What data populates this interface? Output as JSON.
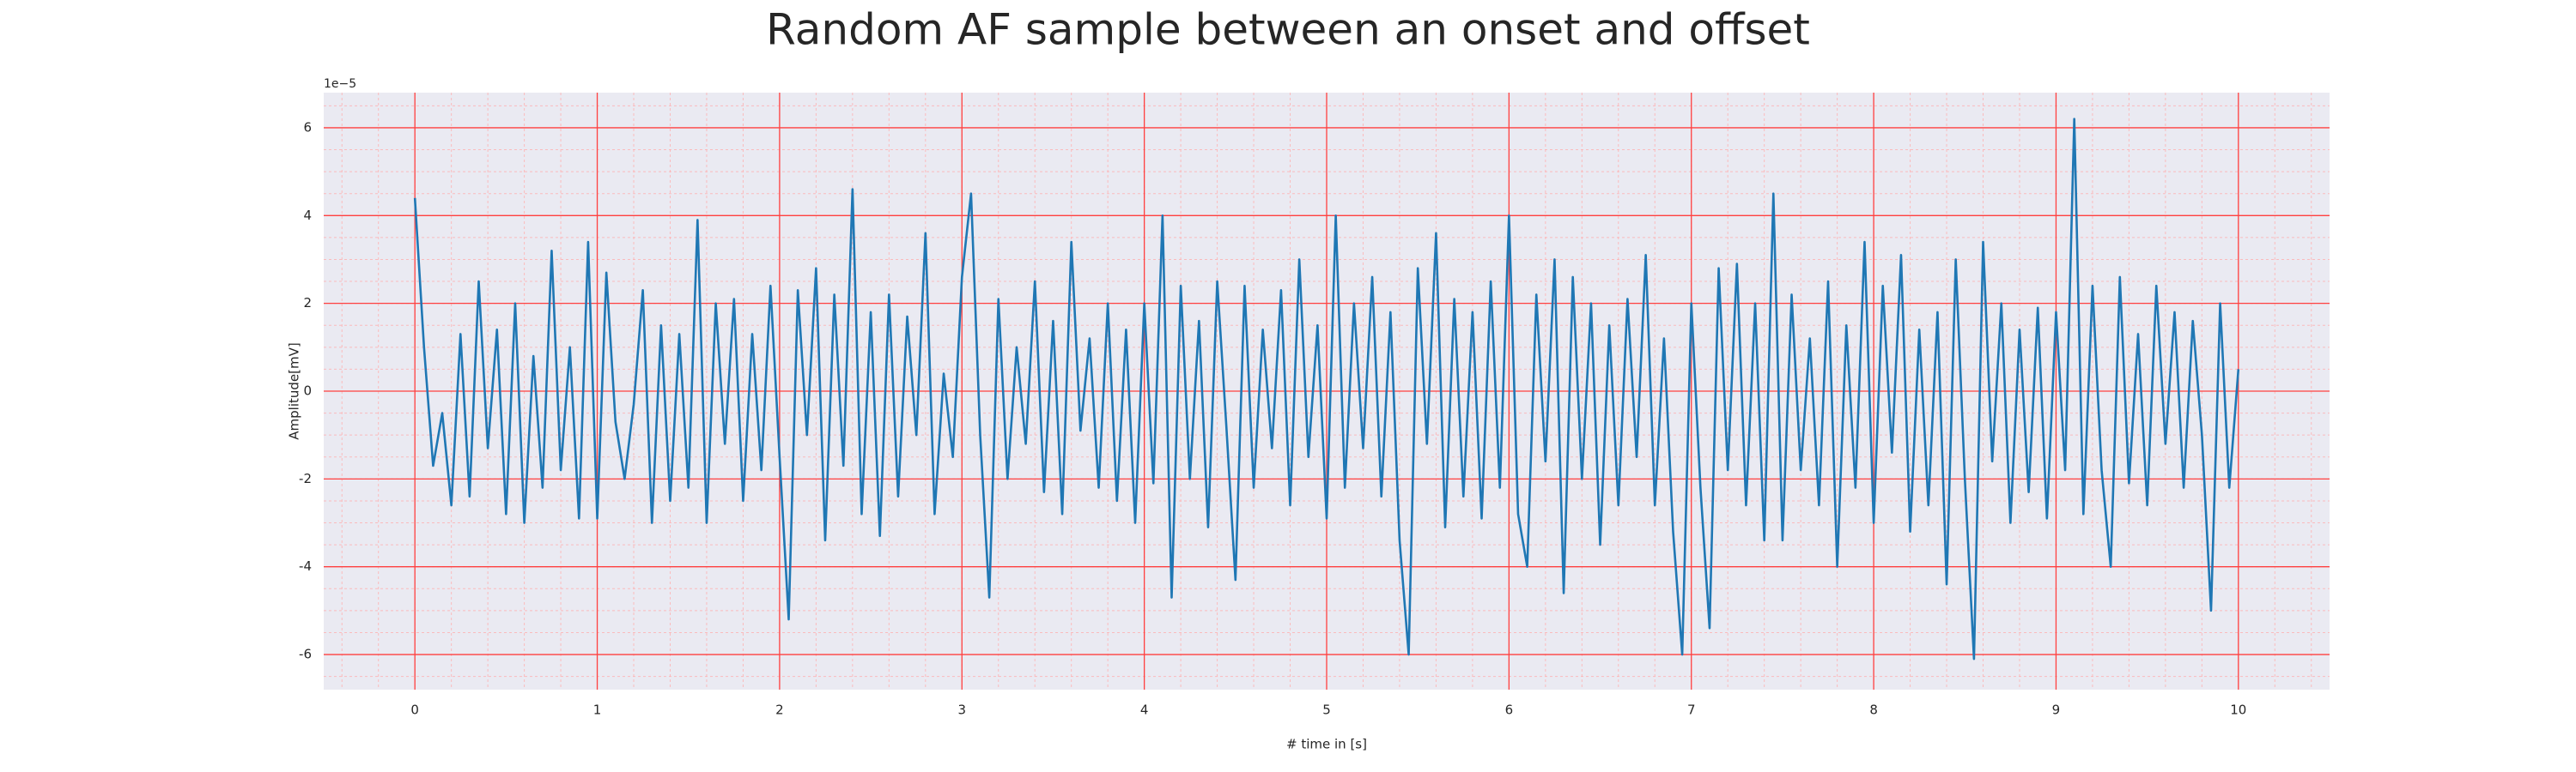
{
  "chart_data": {
    "type": "line",
    "title": "Random AF sample between an onset and offset",
    "xlabel": "# time in [s]",
    "ylabel": "Amplitude[mV]",
    "y_offset_label": "1e−5",
    "color": "#1f77b4",
    "grid": true,
    "minor_grid": true,
    "xlim": [
      -0.5,
      10.5
    ],
    "ylim": [
      -6.8,
      6.8
    ],
    "xticks": [
      0,
      1,
      2,
      3,
      4,
      5,
      6,
      7,
      8,
      9,
      10
    ],
    "yticks": [
      -6,
      -4,
      -2,
      0,
      2,
      4,
      6
    ],
    "x": [
      0,
      0.05,
      0.1,
      0.15,
      0.2,
      0.25,
      0.3,
      0.35,
      0.4,
      0.45,
      0.5,
      0.55,
      0.6,
      0.65,
      0.7,
      0.75,
      0.8,
      0.85,
      0.9,
      0.95,
      1,
      1.05,
      1.1,
      1.15,
      1.2,
      1.25,
      1.3,
      1.35,
      1.4,
      1.45,
      1.5,
      1.55,
      1.6,
      1.65,
      1.7,
      1.75,
      1.8,
      1.85,
      1.9,
      1.95,
      2,
      2.05,
      2.1,
      2.15,
      2.2,
      2.25,
      2.3,
      2.35,
      2.4,
      2.45,
      2.5,
      2.55,
      2.6,
      2.65,
      2.7,
      2.75,
      2.8,
      2.85,
      2.9,
      2.95,
      3,
      3.05,
      3.1,
      3.15,
      3.2,
      3.25,
      3.3,
      3.35,
      3.4,
      3.45,
      3.5,
      3.55,
      3.6,
      3.65,
      3.7,
      3.75,
      3.8,
      3.85,
      3.9,
      3.95,
      4,
      4.05,
      4.1,
      4.15,
      4.2,
      4.25,
      4.3,
      4.35,
      4.4,
      4.45,
      4.5,
      4.55,
      4.6,
      4.65,
      4.7,
      4.75,
      4.8,
      4.85,
      4.9,
      4.95,
      5,
      5.05,
      5.1,
      5.15,
      5.2,
      5.25,
      5.3,
      5.35,
      5.4,
      5.45,
      5.5,
      5.55,
      5.6,
      5.65,
      5.7,
      5.75,
      5.8,
      5.85,
      5.9,
      5.95,
      6,
      6.05,
      6.1,
      6.15,
      6.2,
      6.25,
      6.3,
      6.35,
      6.4,
      6.45,
      6.5,
      6.55,
      6.6,
      6.65,
      6.7,
      6.75,
      6.8,
      6.85,
      6.9,
      6.95,
      7,
      7.05,
      7.1,
      7.15,
      7.2,
      7.25,
      7.3,
      7.35,
      7.4,
      7.45,
      7.5,
      7.55,
      7.6,
      7.65,
      7.7,
      7.75,
      7.8,
      7.85,
      7.9,
      7.95,
      8,
      8.05,
      8.1,
      8.15,
      8.2,
      8.25,
      8.3,
      8.35,
      8.4,
      8.45,
      8.5,
      8.55,
      8.6,
      8.65,
      8.7,
      8.75,
      8.8,
      8.85,
      8.9,
      8.95,
      9,
      9.05,
      9.1,
      9.15,
      9.2,
      9.25,
      9.3,
      9.35,
      9.4,
      9.45,
      9.5,
      9.55,
      9.6,
      9.65,
      9.7,
      9.75,
      9.8,
      9.85,
      9.9,
      9.95,
      10
    ],
    "values": [
      4.4,
      1.0,
      -1.7,
      -0.5,
      -2.6,
      1.3,
      -2.4,
      2.5,
      -1.3,
      1.4,
      -2.8,
      2.0,
      -3.0,
      0.8,
      -2.2,
      3.2,
      -1.8,
      1.0,
      -2.9,
      3.4,
      -2.9,
      2.7,
      -0.7,
      -2.0,
      -0.3,
      2.3,
      -3.0,
      1.5,
      -2.5,
      1.3,
      -2.2,
      3.9,
      -3.0,
      2.0,
      -1.2,
      2.1,
      -2.5,
      1.3,
      -1.8,
      2.4,
      -1.5,
      -5.2,
      2.3,
      -1.0,
      2.8,
      -3.4,
      2.2,
      -1.7,
      4.6,
      -2.8,
      1.8,
      -3.3,
      2.2,
      -2.4,
      1.7,
      -1.0,
      3.6,
      -2.8,
      0.4,
      -1.5,
      2.6,
      4.5,
      -1.0,
      -4.7,
      2.1,
      -2.0,
      1.0,
      -1.2,
      2.5,
      -2.3,
      1.6,
      -2.8,
      3.4,
      -0.9,
      1.2,
      -2.2,
      2.0,
      -2.5,
      1.4,
      -3.0,
      2.0,
      -2.1,
      4.0,
      -4.7,
      2.4,
      -2.0,
      1.6,
      -3.1,
      2.5,
      -0.8,
      -4.3,
      2.4,
      -2.2,
      1.4,
      -1.3,
      2.3,
      -2.6,
      3.0,
      -1.5,
      1.5,
      -2.9,
      4.0,
      -2.2,
      2.0,
      -1.3,
      2.6,
      -2.4,
      1.8,
      -3.4,
      -6.0,
      2.8,
      -1.2,
      3.6,
      -3.1,
      2.1,
      -2.4,
      1.8,
      -2.9,
      2.5,
      -2.2,
      4.0,
      -2.8,
      -4.0,
      2.2,
      -1.6,
      3.0,
      -4.6,
      2.6,
      -2.0,
      2.0,
      -3.5,
      1.5,
      -2.6,
      2.1,
      -1.5,
      3.1,
      -2.6,
      1.2,
      -3.2,
      -6.0,
      2.0,
      -2.2,
      -5.4,
      2.8,
      -1.8,
      2.9,
      -2.6,
      2.0,
      -3.4,
      4.5,
      -3.4,
      2.2,
      -1.8,
      1.2,
      -2.6,
      2.5,
      -4.0,
      1.5,
      -2.2,
      3.4,
      -3.0,
      2.4,
      -1.4,
      3.1,
      -3.2,
      1.4,
      -2.6,
      1.8,
      -4.4,
      3.0,
      -2.0,
      -6.1,
      3.4,
      -1.6,
      2.0,
      -3.0,
      1.4,
      -2.3,
      1.9,
      -2.9,
      1.8,
      -1.8,
      6.2,
      -2.8,
      2.4,
      -1.8,
      -4.0,
      2.6,
      -2.1,
      1.3,
      -2.6,
      2.4,
      -1.2,
      1.8,
      -2.2,
      1.6,
      -1.0,
      -5.0,
      2.0,
      -2.2,
      0.5
    ]
  }
}
